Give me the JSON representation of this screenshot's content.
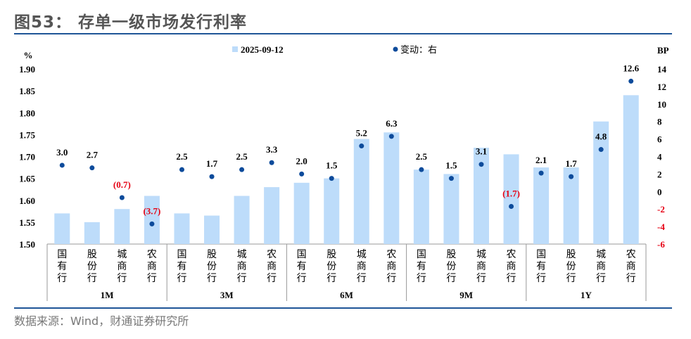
{
  "title": "图53：  存单一级市场发行利率",
  "source": "数据来源：Wind，财通证券研究所",
  "chart_data": {
    "type": "bar+scatter",
    "left_unit": "%",
    "right_unit": "BP",
    "left_ylim": [
      1.5,
      1.9
    ],
    "left_ticks": [
      "1.50",
      "1.55",
      "1.60",
      "1.65",
      "1.70",
      "1.75",
      "1.80",
      "1.85",
      "1.90"
    ],
    "right_ylim": [
      -6,
      14
    ],
    "right_ticks": [
      "-6",
      "-4",
      "-2",
      "0",
      "2",
      "4",
      "6",
      "8",
      "10",
      "12",
      "14"
    ],
    "legend": {
      "bar": "2025-09-12",
      "dot": "变动：右"
    },
    "groups": [
      "1M",
      "3M",
      "6M",
      "9M",
      "1Y"
    ],
    "categories": [
      "国有行",
      "股份行",
      "城商行",
      "农商行"
    ],
    "bar_values": [
      1.57,
      1.55,
      1.58,
      1.61,
      1.57,
      1.565,
      1.61,
      1.63,
      1.64,
      1.65,
      1.74,
      1.755,
      1.67,
      1.66,
      1.72,
      1.705,
      1.675,
      1.675,
      1.78,
      1.84
    ],
    "change_values": [
      3.0,
      2.7,
      -0.7,
      -3.7,
      2.5,
      1.7,
      2.5,
      3.3,
      2.0,
      1.5,
      5.2,
      6.3,
      2.5,
      1.5,
      3.1,
      -1.7,
      2.1,
      1.7,
      4.8,
      12.6
    ],
    "change_labels": [
      "3.0",
      "2.7",
      "(0.7)",
      "(3.7)",
      "2.5",
      "1.7",
      "2.5",
      "3.3",
      "2.0",
      "1.5",
      "5.2",
      "6.3",
      "2.5",
      "1.5",
      "3.1",
      "(1.7)",
      "2.1",
      "1.7",
      "4.8",
      "12.6"
    ],
    "colors": {
      "bar": "#bddcfa",
      "dot": "#0d4b9b",
      "negative_label": "#e60012",
      "axis_right_negative": "#e60012"
    }
  }
}
